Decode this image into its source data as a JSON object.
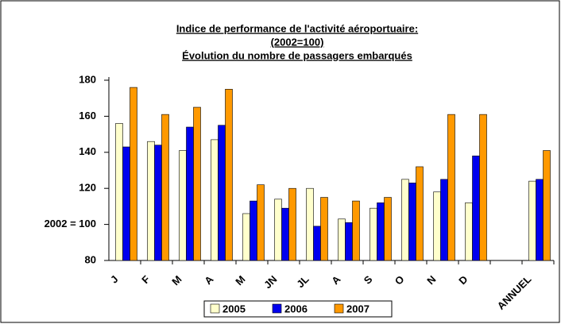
{
  "chart_data": {
    "type": "bar",
    "title": [
      "Indice de performance de l'activité aéroportuaire:",
      "(2002=100)",
      "Évolution du nombre de passagers embarqués"
    ],
    "categories": [
      "J",
      "F",
      "M",
      "A",
      "M",
      "JN",
      "JL",
      "A",
      "S",
      "O",
      "N",
      "D",
      null,
      "ANNUEL"
    ],
    "series": [
      {
        "name": "2005",
        "color": "#ffffcc",
        "values": [
          156,
          146,
          141,
          147,
          106,
          114,
          120,
          103,
          109,
          125,
          118,
          112,
          null,
          124
        ]
      },
      {
        "name": "2006",
        "color": "#0000ee",
        "values": [
          143,
          144,
          154,
          155,
          113,
          109,
          99,
          101,
          112,
          123,
          125,
          138,
          null,
          125
        ]
      },
      {
        "name": "2007",
        "color": "#ff9900",
        "values": [
          176,
          161,
          165,
          175,
          122,
          120,
          115,
          113,
          115,
          132,
          161,
          161,
          null,
          141
        ]
      }
    ],
    "ylim": [
      80,
      180
    ],
    "yticks": [
      80,
      {
        "value": 100,
        "label": "2002 = 100"
      },
      120,
      140,
      160,
      180
    ],
    "legend": "bottom"
  }
}
